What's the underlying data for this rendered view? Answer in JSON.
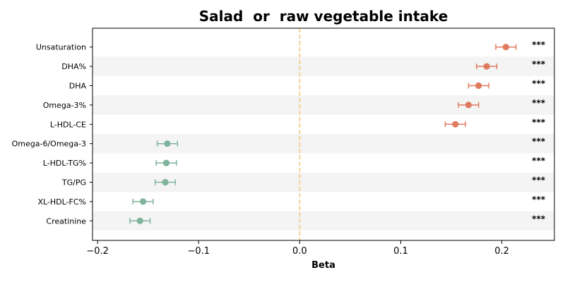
{
  "chart_data": {
    "type": "forest",
    "title": "Salad  or  raw vegetable intake",
    "xlabel": "Beta",
    "xlim": [
      -0.205,
      0.252
    ],
    "xticks": [
      -0.2,
      -0.1,
      0.0,
      0.1,
      0.2
    ],
    "xtick_labels": [
      "−0.2",
      "−0.1",
      "0.0",
      "0.1",
      "0.2"
    ],
    "reference_line": 0.0,
    "reference_line_color": "#f5c87a",
    "alternating_row_shading": true,
    "positive_color": "#e07b5f",
    "negative_color": "#7fb39b",
    "rows": [
      {
        "label": "Unsaturation",
        "beta": 0.204,
        "ci_low": 0.194,
        "ci_high": 0.214,
        "sig": "***"
      },
      {
        "label": "DHA%",
        "beta": 0.185,
        "ci_low": 0.175,
        "ci_high": 0.195,
        "sig": "***"
      },
      {
        "label": "DHA",
        "beta": 0.177,
        "ci_low": 0.167,
        "ci_high": 0.187,
        "sig": "***"
      },
      {
        "label": "Omega-3%",
        "beta": 0.167,
        "ci_low": 0.157,
        "ci_high": 0.177,
        "sig": "***"
      },
      {
        "label": "L-HDL-CE",
        "beta": 0.154,
        "ci_low": 0.144,
        "ci_high": 0.164,
        "sig": "***"
      },
      {
        "label": "Omega-6/Omega-3",
        "beta": -0.131,
        "ci_low": -0.141,
        "ci_high": -0.121,
        "sig": "***"
      },
      {
        "label": "L-HDL-TG%",
        "beta": -0.132,
        "ci_low": -0.142,
        "ci_high": -0.122,
        "sig": "***"
      },
      {
        "label": "TG/PG",
        "beta": -0.133,
        "ci_low": -0.143,
        "ci_high": -0.123,
        "sig": "***"
      },
      {
        "label": "XL-HDL-FC%",
        "beta": -0.155,
        "ci_low": -0.165,
        "ci_high": -0.145,
        "sig": "***"
      },
      {
        "label": "Creatinine",
        "beta": -0.158,
        "ci_low": -0.168,
        "ci_high": -0.148,
        "sig": "***"
      }
    ]
  }
}
